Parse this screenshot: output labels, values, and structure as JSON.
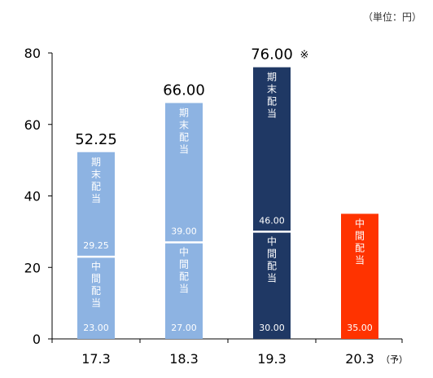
{
  "unit_label": "（単位：円）",
  "chart_data": {
    "type": "bar",
    "stacked": true,
    "title": "",
    "xlabel": "",
    "ylabel": "",
    "ylim": [
      0,
      80
    ],
    "yticks": [
      0,
      20,
      40,
      60,
      80
    ],
    "grid": false,
    "categories": [
      "17.3",
      "18.3",
      "19.3",
      "20.3"
    ],
    "category_suffixes": [
      "",
      "",
      "",
      "（予）"
    ],
    "segments": [
      {
        "category": "17.3",
        "stack": [
          {
            "label": "中間配当",
            "value": 23.0,
            "value_label": "23.00",
            "color": "#8db3e2"
          },
          {
            "label": "期末配当",
            "value": 29.25,
            "value_label": "29.25",
            "color": "#8db3e2"
          }
        ],
        "total_label": "52.25",
        "total_mark": ""
      },
      {
        "category": "18.3",
        "stack": [
          {
            "label": "中間配当",
            "value": 27.0,
            "value_label": "27.00",
            "color": "#8db3e2"
          },
          {
            "label": "期末配当",
            "value": 39.0,
            "value_label": "39.00",
            "color": "#8db3e2"
          }
        ],
        "total_label": "66.00",
        "total_mark": ""
      },
      {
        "category": "19.3",
        "stack": [
          {
            "label": "中間配当",
            "value": 30.0,
            "value_label": "30.00",
            "color": "#1f3864"
          },
          {
            "label": "期末配当",
            "value": 46.0,
            "value_label": "46.00",
            "color": "#1f3864"
          }
        ],
        "total_label": "76.00",
        "total_mark": "※"
      },
      {
        "category": "20.3",
        "stack": [
          {
            "label": "中間配当",
            "value": 35.0,
            "value_label": "35.00",
            "color": "#ff3300"
          }
        ],
        "total_label": "",
        "total_mark": ""
      }
    ]
  }
}
